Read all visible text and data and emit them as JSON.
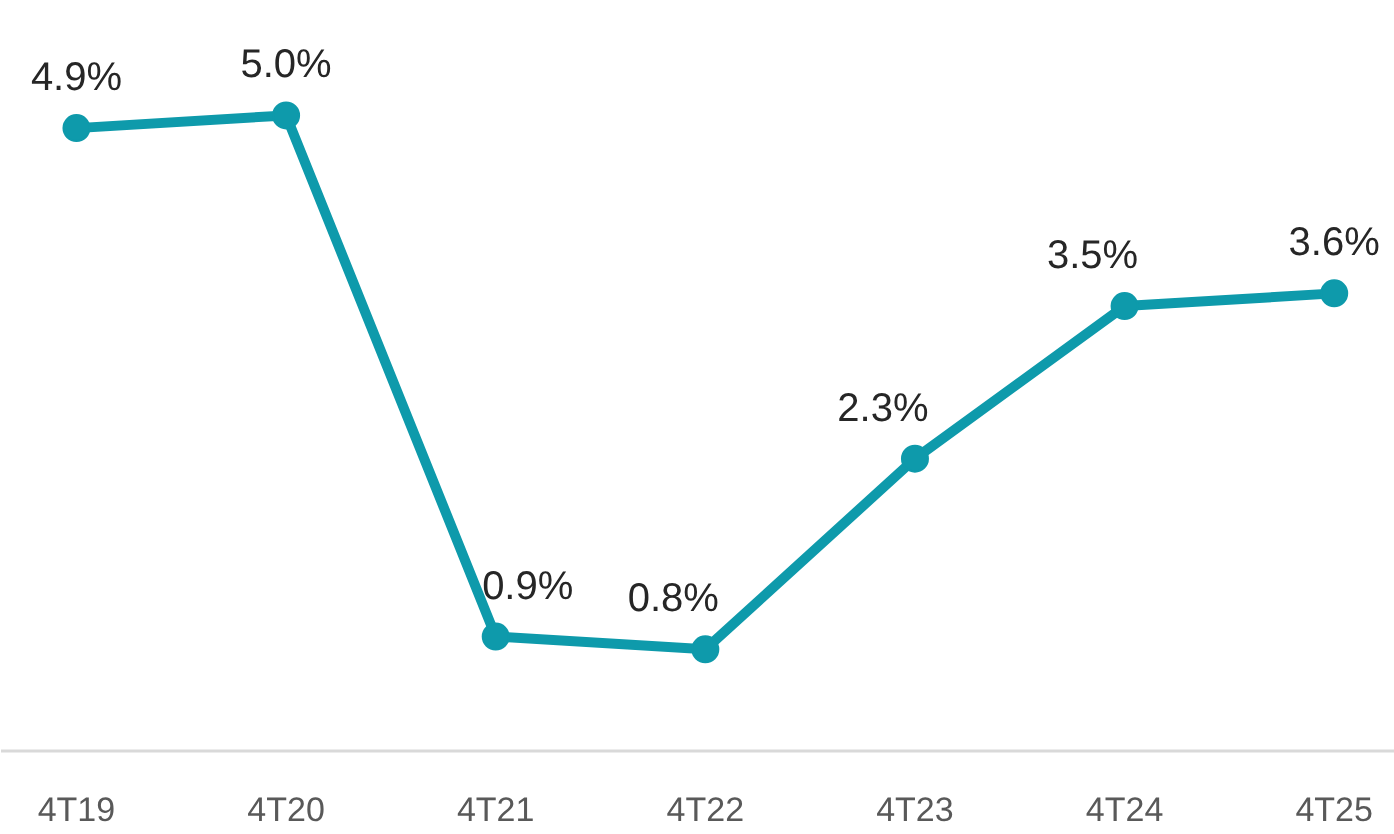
{
  "chart_data": {
    "type": "line",
    "categories": [
      "4T19",
      "4T20",
      "4T21",
      "4T22",
      "4T23",
      "4T24",
      "4T25"
    ],
    "series": [
      {
        "color": "#0e9aab",
        "values": [
          4.9,
          5.0,
          0.9,
          0.8,
          2.3,
          3.5,
          3.6
        ],
        "value_labels": [
          "4.9%",
          "5.0%",
          "0.9%",
          "0.8%",
          "2.3%",
          "3.5%",
          "3.6%"
        ]
      }
    ],
    "marker": "circle",
    "line_style": "solid",
    "grid": false
  }
}
